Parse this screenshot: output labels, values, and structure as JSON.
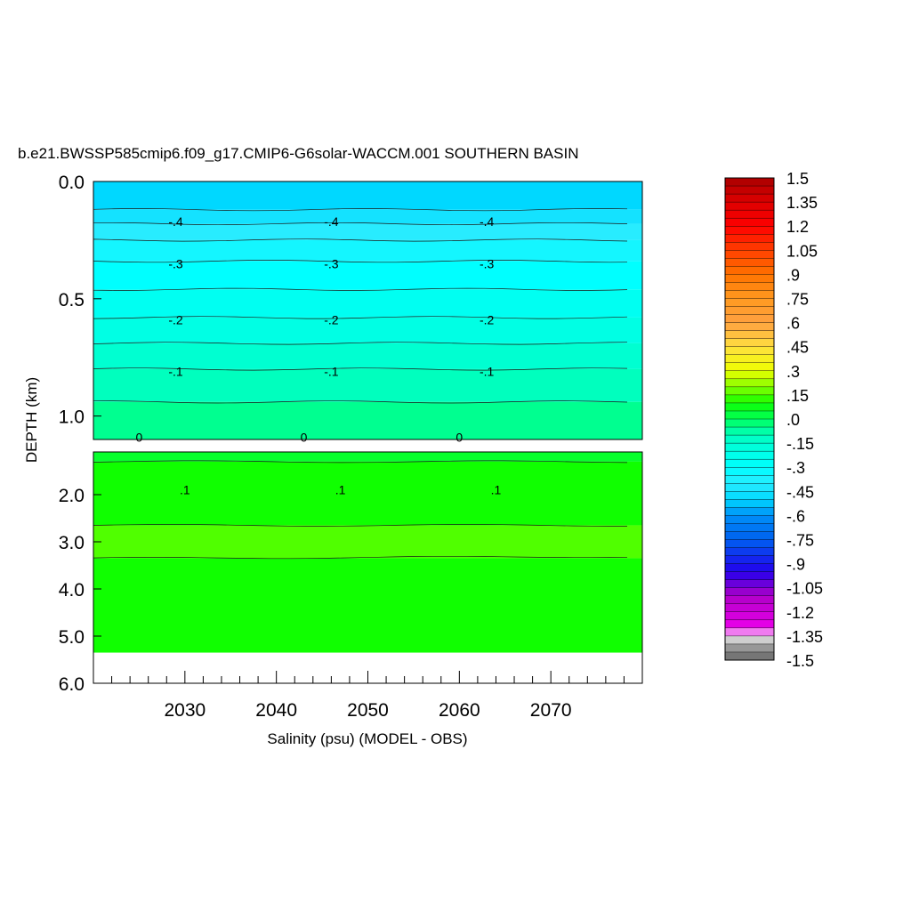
{
  "chart_data": {
    "type": "heatmap",
    "title": "b.e21.BWSSP585cmip6.f09_g17.CMIP6-G6solar-WACCM.001 SOUTHERN BASIN",
    "xlabel": "Salinity (psu) (MODEL - OBS)",
    "ylabel": "DEPTH (km)",
    "xlim": [
      2020,
      2080
    ],
    "x_ticks": [
      2030,
      2040,
      2050,
      2060,
      2070
    ],
    "x_tick_labels": [
      "2030",
      "2040",
      "2050",
      "2060",
      "2070"
    ],
    "upper_panel": {
      "ylim": [
        0.0,
        1.1
      ],
      "y_ticks": [
        0.0,
        0.5,
        1.0
      ],
      "y_tick_labels": [
        "0.0",
        "0.5",
        "1.0"
      ],
      "bands": [
        {
          "from": 0.0,
          "to": 0.12,
          "value": -0.5
        },
        {
          "from": 0.12,
          "to": 0.18,
          "value": -0.45
        },
        {
          "from": 0.18,
          "to": 0.25,
          "value": -0.4
        },
        {
          "from": 0.25,
          "to": 0.34,
          "value": -0.35
        },
        {
          "from": 0.34,
          "to": 0.46,
          "value": -0.3
        },
        {
          "from": 0.46,
          "to": 0.58,
          "value": -0.25
        },
        {
          "from": 0.58,
          "to": 0.69,
          "value": -0.2
        },
        {
          "from": 0.69,
          "to": 0.8,
          "value": -0.15
        },
        {
          "from": 0.8,
          "to": 0.94,
          "value": -0.1
        },
        {
          "from": 0.94,
          "to": 1.1,
          "value": -0.05
        }
      ],
      "contour_labels": [
        {
          "text": "-.4",
          "depth": 0.17,
          "years": [
            2029,
            2046,
            2063
          ]
        },
        {
          "text": "-.3",
          "depth": 0.35,
          "years": [
            2029,
            2046,
            2063
          ]
        },
        {
          "text": "-.2",
          "depth": 0.59,
          "years": [
            2029,
            2046,
            2063
          ]
        },
        {
          "text": "-.1",
          "depth": 0.81,
          "years": [
            2029,
            2046,
            2063
          ]
        },
        {
          "text": "0",
          "depth": 1.09,
          "years": [
            2025,
            2043,
            2060
          ]
        }
      ]
    },
    "lower_panel": {
      "ylim": [
        1.0,
        6.0
      ],
      "y_ticks": [
        2.0,
        3.0,
        4.0,
        5.0,
        6.0
      ],
      "y_tick_labels": [
        "2.0",
        "3.0",
        "4.0",
        "5.0",
        "6.0"
      ],
      "bottom_depth": 5.35,
      "bands": [
        {
          "from": 1.0,
          "to": 1.3,
          "value": 0.05
        },
        {
          "from": 1.3,
          "to": 2.65,
          "value": 0.1
        },
        {
          "from": 2.65,
          "to": 3.35,
          "value": 0.15
        },
        {
          "from": 3.35,
          "to": 5.35,
          "value": 0.1
        }
      ],
      "contour_labels": [
        {
          "text": ".1",
          "depth": 1.9,
          "years": [
            2030,
            2047,
            2064
          ]
        }
      ]
    },
    "colorbar": {
      "min": -1.5,
      "max": 1.5,
      "step": 0.05,
      "tick_labels": [
        "1.5",
        "1.35",
        "1.2",
        "1.05",
        ".9",
        ".75",
        ".6",
        ".45",
        ".3",
        ".15",
        ".0",
        "-.15",
        "-.3",
        "-.45",
        "-.6",
        "-.75",
        "-.9",
        "-1.05",
        "-1.2",
        "-1.35",
        "-1.5"
      ]
    },
    "colors": {
      "undefined_area": "#ffffff",
      "axis": "#000000"
    }
  }
}
